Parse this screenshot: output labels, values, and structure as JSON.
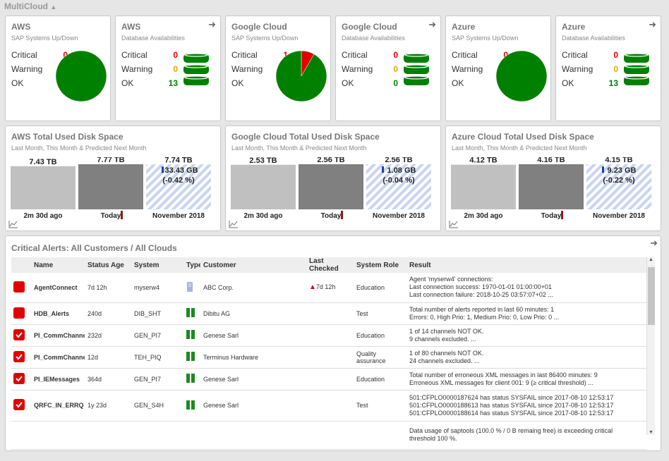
{
  "header": {
    "title": "MultiCloud"
  },
  "tiles": [
    {
      "title": "AWS",
      "subtitle": "SAP Systems Up/Down",
      "kind": "pie",
      "arrow": false,
      "stats": [
        {
          "label": "Critical",
          "value": "0"
        },
        {
          "label": "Warning",
          "value": "0"
        },
        {
          "label": "OK",
          "value": "10"
        }
      ]
    },
    {
      "title": "AWS",
      "subtitle": "Database Availabilities",
      "kind": "db",
      "arrow": true,
      "stats": [
        {
          "label": "Critical",
          "value": "0"
        },
        {
          "label": "Warning",
          "value": "0"
        },
        {
          "label": "OK",
          "value": "13"
        }
      ]
    },
    {
      "title": "Google Cloud",
      "subtitle": "SAP Systems Up/Down",
      "kind": "pie",
      "arrow": false,
      "stats": [
        {
          "label": "Critical",
          "value": "1"
        },
        {
          "label": "Warning",
          "value": "0"
        },
        {
          "label": "OK",
          "value": "11"
        }
      ]
    },
    {
      "title": "Google Cloud",
      "subtitle": "Database Availabilities",
      "kind": "db",
      "arrow": true,
      "stats": [
        {
          "label": "Critical",
          "value": "0"
        },
        {
          "label": "Warning",
          "value": "0"
        },
        {
          "label": "OK",
          "value": "0"
        }
      ]
    },
    {
      "title": "Azure",
      "subtitle": "SAP Systems Up/Down",
      "kind": "pie",
      "arrow": false,
      "stats": [
        {
          "label": "Critical",
          "value": "0"
        },
        {
          "label": "Warning",
          "value": "0"
        },
        {
          "label": "OK",
          "value": "13"
        }
      ]
    },
    {
      "title": "Azure",
      "subtitle": "Database Availabilities",
      "kind": "db",
      "arrow": true,
      "stats": [
        {
          "label": "Critical",
          "value": "0"
        },
        {
          "label": "Warning",
          "value": "0"
        },
        {
          "label": "OK",
          "value": "13"
        }
      ]
    }
  ],
  "disks": [
    {
      "title": "AWS Total Used Disk Space",
      "subtitle": "Last Month, This Month & Predicted Next Month",
      "bars": [
        {
          "label": "7.43 TB",
          "value": 7.43,
          "x": "2m 30d ago"
        },
        {
          "label": "7.77 TB",
          "value": 7.77,
          "x": "Today"
        },
        {
          "label": "7.74 TB",
          "value": 7.74,
          "x": "November 2018",
          "delta": "33.43 GB",
          "pct": "(-0.42 %)"
        }
      ]
    },
    {
      "title": "Google Cloud Total Used Disk Space",
      "subtitle": "Last Month, This Month & Predicted Next Month",
      "bars": [
        {
          "label": "2.53 TB",
          "value": 2.53,
          "x": "2m 30d ago"
        },
        {
          "label": "2.56 TB",
          "value": 2.56,
          "x": "Today"
        },
        {
          "label": "2.56 TB",
          "value": 2.56,
          "x": "November 2018",
          "delta": "1.08 GB",
          "pct": "(-0.04 %)"
        }
      ]
    },
    {
      "title": "Azure Cloud Total Used Disk Space",
      "subtitle": "Last Month, This Month & Predicted Next Month",
      "bars": [
        {
          "label": "4.12 TB",
          "value": 4.12,
          "x": "2m 30d ago"
        },
        {
          "label": "4.16 TB",
          "value": 4.16,
          "x": "Today"
        },
        {
          "label": "4.15 TB",
          "value": 4.15,
          "x": "November 2018",
          "delta": "9.23 GB",
          "pct": "(-0.22 %)"
        }
      ]
    }
  ],
  "alerts": {
    "title": "Critical Alerts: All Customers / All Clouds",
    "columns": [
      "Name",
      "Status Age",
      "System",
      "Type",
      "Customer",
      "Last Checked",
      "System Role",
      "Result"
    ],
    "rows": [
      {
        "name": "AgentConnect",
        "age": "7d 12h",
        "system": "myserw4",
        "type": "server",
        "customer": "ABC Corp.",
        "checked": "7d 12h",
        "warn": true,
        "role": "Education",
        "checked_box": false,
        "result": "Agent 'myserw4' connections:\nLast connection success: 1970-01-01 01:00:00+01\nLast connection failure: 2018-10-25 03:57:07+02 ..."
      },
      {
        "name": "HDB_Alerts",
        "age": "240d",
        "system": "DIB_SHT",
        "type": "db",
        "customer": "Dibitu AG",
        "checked": "",
        "warn": false,
        "role": "Test",
        "checked_box": false,
        "result": "Total number of alerts reported in last 60 minutes: 1\nErrors: 0, High Prio: 1, Medium Prio: 0, Low Prio: 0 ..."
      },
      {
        "name": "PI_CommChannels",
        "age": "232d",
        "system": "GEN_PI7",
        "type": "db",
        "customer": "Genese Sarl",
        "checked": "",
        "warn": false,
        "role": "Education",
        "checked_box": true,
        "result": "1 of 14 channels NOT OK.\n9 channels excluded. ..."
      },
      {
        "name": "PI_CommChannels",
        "age": "12d",
        "system": "TEH_PIQ",
        "type": "db",
        "customer": "Terminus Hardware",
        "checked": "",
        "warn": false,
        "role": "Quality assurance",
        "checked_box": true,
        "result": "1 of 80 channels NOT OK.\n24 channels excluded. ..."
      },
      {
        "name": "PI_IEMessages",
        "age": "364d",
        "system": "GEN_PI7",
        "type": "db",
        "customer": "Genese Sarl",
        "checked": "",
        "warn": false,
        "role": "Education",
        "checked_box": true,
        "result": "Total number of erroneous XML messages in last 86400 minutes: 9\nErroneous XML messages for client 001: 9 (≥ critical threshold) ..."
      },
      {
        "name": "QRFC_IN_ERRQ",
        "age": "1y 23d",
        "system": "GEN_S4H",
        "type": "db",
        "customer": "Genese Sarl",
        "checked": "",
        "warn": false,
        "role": "Test",
        "checked_box": true,
        "result": "501:CFPLO0000187624 has status SYSFAIL since 2017-08-10 12:53:17\n501:CFPLO0000188613 has status SYSFAIL since 2017-08-10 12:53:17\n501:CFPLO0000188614 has status SYSFAIL since 2017-08-10 12:53:17"
      },
      {
        "name": "",
        "age": "",
        "system": "",
        "type": "",
        "customer": "",
        "checked": "",
        "warn": false,
        "role": "",
        "checked_box": null,
        "result": "Data usage of saptools (100.0 % / 0 B remaing free) is exceeding critical\nthreshold 100 %."
      }
    ]
  },
  "colors": {
    "ok": "#008000",
    "critical": "#e00000",
    "warning": "#e5a800",
    "bar_prev": "#c0c0c0",
    "bar_today": "#808080",
    "bar_pred": "#c8d4f0"
  }
}
